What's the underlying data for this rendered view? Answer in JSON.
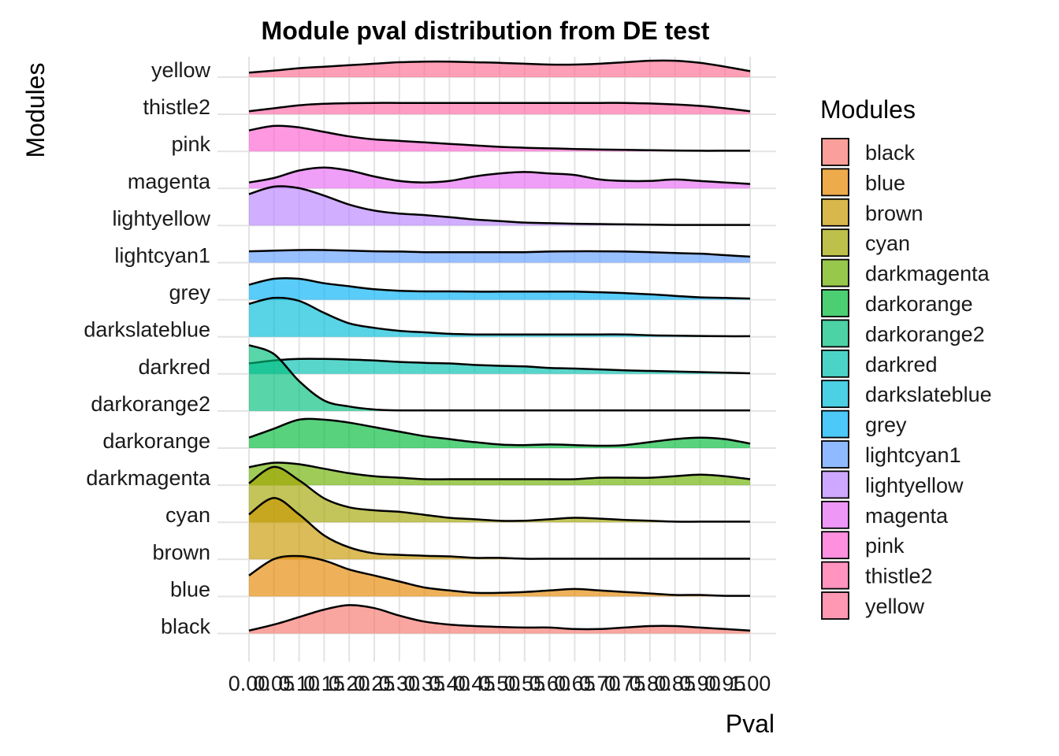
{
  "chart_data": {
    "type": "ridgeline",
    "title": "Module pval distribution from DE test",
    "xlabel": "Pval",
    "ylabel": "Modules",
    "xlim": [
      0,
      1
    ],
    "x_ticks": [
      "0.00",
      "0.05",
      "0.10",
      "0.15",
      "0.20",
      "0.25",
      "0.30",
      "0.35",
      "0.40",
      "0.45",
      "0.50",
      "0.55",
      "0.60",
      "0.65",
      "0.70",
      "0.75",
      "0.80",
      "0.85",
      "0.90",
      "0.95",
      "1.00"
    ],
    "legend_title": "Modules",
    "legend_position": "right",
    "grid": true,
    "x": [
      0,
      0.05,
      0.1,
      0.15,
      0.2,
      0.25,
      0.3,
      0.35,
      0.4,
      0.45,
      0.5,
      0.55,
      0.6,
      0.65,
      0.7,
      0.75,
      0.8,
      0.85,
      0.9,
      0.95,
      1.0
    ],
    "series": [
      {
        "name": "black",
        "color": "#F8766D",
        "density": [
          0.1,
          0.3,
          0.55,
          0.8,
          0.95,
          0.85,
          0.6,
          0.4,
          0.3,
          0.25,
          0.22,
          0.2,
          0.2,
          0.15,
          0.15,
          0.2,
          0.25,
          0.25,
          0.2,
          0.15,
          0.1
        ]
      },
      {
        "name": "blue",
        "color": "#E58700",
        "density": [
          0.7,
          1.25,
          1.35,
          1.2,
          0.9,
          0.7,
          0.5,
          0.3,
          0.2,
          0.12,
          0.12,
          0.15,
          0.2,
          0.25,
          0.2,
          0.15,
          0.1,
          0.05,
          0.05,
          0.02,
          0.02
        ]
      },
      {
        "name": "brown",
        "color": "#C99800",
        "density": [
          1.5,
          2.05,
          1.5,
          0.8,
          0.4,
          0.2,
          0.15,
          0.12,
          0.1,
          0.05,
          0.05,
          0.02,
          0.02,
          0.02,
          0.02,
          0.02,
          0.02,
          0.02,
          0.02,
          0.02,
          0.02
        ]
      },
      {
        "name": "cyan",
        "color": "#A3A500",
        "density": [
          1.3,
          1.85,
          1.4,
          0.8,
          0.5,
          0.4,
          0.35,
          0.25,
          0.15,
          0.1,
          0.05,
          0.05,
          0.1,
          0.15,
          0.12,
          0.08,
          0.05,
          0.02,
          0.02,
          0.02,
          0.02
        ]
      },
      {
        "name": "darkmagenta",
        "color": "#6BB100",
        "density": [
          0.6,
          0.75,
          0.7,
          0.55,
          0.4,
          0.3,
          0.25,
          0.2,
          0.2,
          0.2,
          0.2,
          0.2,
          0.2,
          0.2,
          0.25,
          0.25,
          0.25,
          0.3,
          0.35,
          0.3,
          0.2
        ]
      },
      {
        "name": "darkorange",
        "color": "#00BA38",
        "density": [
          0.35,
          0.65,
          0.95,
          0.95,
          0.85,
          0.7,
          0.55,
          0.4,
          0.3,
          0.2,
          0.12,
          0.1,
          0.12,
          0.1,
          0.08,
          0.1,
          0.2,
          0.3,
          0.35,
          0.3,
          0.15
        ]
      },
      {
        "name": "darkorange2",
        "color": "#00BF7D",
        "density": [
          2.2,
          1.9,
          1.0,
          0.35,
          0.15,
          0.05,
          0.02,
          0.02,
          0.02,
          0.02,
          0.02,
          0.02,
          0.02,
          0.02,
          0.02,
          0.02,
          0.02,
          0.02,
          0.02,
          0.02,
          0.02
        ]
      },
      {
        "name": "darkred",
        "color": "#00C0AF",
        "density": [
          0.35,
          0.45,
          0.5,
          0.5,
          0.48,
          0.45,
          0.4,
          0.37,
          0.35,
          0.3,
          0.27,
          0.25,
          0.2,
          0.18,
          0.15,
          0.12,
          0.1,
          0.08,
          0.06,
          0.04,
          0.02
        ]
      },
      {
        "name": "darkslateblue",
        "color": "#00BCD8",
        "density": [
          1.1,
          1.3,
          1.2,
          0.8,
          0.45,
          0.3,
          0.2,
          0.15,
          0.1,
          0.08,
          0.08,
          0.08,
          0.08,
          0.08,
          0.08,
          0.08,
          0.05,
          0.04,
          0.03,
          0.02,
          0.02
        ]
      },
      {
        "name": "grey",
        "color": "#00B0F6",
        "density": [
          0.5,
          0.7,
          0.7,
          0.55,
          0.45,
          0.35,
          0.3,
          0.28,
          0.28,
          0.27,
          0.27,
          0.27,
          0.27,
          0.27,
          0.25,
          0.22,
          0.18,
          0.13,
          0.08,
          0.06,
          0.04
        ]
      },
      {
        "name": "lightcyan1",
        "color": "#619CFF",
        "density": [
          0.38,
          0.4,
          0.42,
          0.42,
          0.4,
          0.38,
          0.37,
          0.35,
          0.35,
          0.35,
          0.35,
          0.35,
          0.37,
          0.38,
          0.38,
          0.37,
          0.35,
          0.32,
          0.3,
          0.25,
          0.2
        ]
      },
      {
        "name": "lightyellow",
        "color": "#B983FF",
        "density": [
          1.05,
          1.3,
          1.25,
          1.0,
          0.7,
          0.5,
          0.4,
          0.35,
          0.28,
          0.2,
          0.15,
          0.1,
          0.08,
          0.06,
          0.05,
          0.04,
          0.03,
          0.02,
          0.02,
          0.02,
          0.02
        ]
      },
      {
        "name": "magenta",
        "color": "#E76BF3",
        "density": [
          0.2,
          0.35,
          0.6,
          0.7,
          0.6,
          0.4,
          0.25,
          0.2,
          0.25,
          0.4,
          0.5,
          0.55,
          0.5,
          0.45,
          0.3,
          0.25,
          0.25,
          0.3,
          0.25,
          0.2,
          0.15
        ]
      },
      {
        "name": "pink",
        "color": "#FD61D1",
        "density": [
          0.7,
          0.85,
          0.8,
          0.65,
          0.5,
          0.4,
          0.35,
          0.3,
          0.25,
          0.2,
          0.15,
          0.12,
          0.1,
          0.08,
          0.06,
          0.05,
          0.04,
          0.03,
          0.02,
          0.02,
          0.02
        ]
      },
      {
        "name": "thistle2",
        "color": "#FF67A4",
        "density": [
          0.1,
          0.2,
          0.3,
          0.35,
          0.37,
          0.38,
          0.38,
          0.38,
          0.38,
          0.38,
          0.38,
          0.38,
          0.38,
          0.38,
          0.38,
          0.38,
          0.36,
          0.33,
          0.28,
          0.2,
          0.1
        ]
      },
      {
        "name": "yellow",
        "color": "#FF6C91",
        "density": [
          0.15,
          0.22,
          0.3,
          0.35,
          0.4,
          0.45,
          0.5,
          0.52,
          0.52,
          0.5,
          0.48,
          0.45,
          0.42,
          0.42,
          0.45,
          0.5,
          0.55,
          0.55,
          0.48,
          0.35,
          0.2
        ]
      }
    ]
  }
}
